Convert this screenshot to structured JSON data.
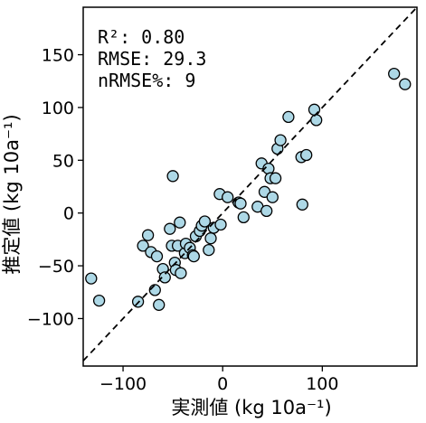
{
  "chart_data": {
    "type": "scatter",
    "xlabel": "実測値 (kg 10a⁻¹)",
    "ylabel": "推定値 (kg 10a⁻¹)",
    "xlim": [
      -140,
      195
    ],
    "ylim": [
      -145,
      195
    ],
    "xticks": [
      -100,
      0,
      100
    ],
    "yticks": [
      -100,
      -50,
      0,
      50,
      100,
      150
    ],
    "grid": false,
    "reference_line": "1:1 dashed",
    "stats": {
      "r2": "R²: 0.80",
      "rmse": "RMSE: 29.3",
      "nrmse": "nRMSE%: 9"
    },
    "marker_color": "#add8e6",
    "marker_edge": "#000000",
    "points": [
      {
        "x": -132,
        "y": -62
      },
      {
        "x": -124,
        "y": -83
      },
      {
        "x": -85,
        "y": -84
      },
      {
        "x": -80,
        "y": -31
      },
      {
        "x": -75,
        "y": -21
      },
      {
        "x": -72,
        "y": -37
      },
      {
        "x": -68,
        "y": -73
      },
      {
        "x": -66,
        "y": -41
      },
      {
        "x": -64,
        "y": -87
      },
      {
        "x": -60,
        "y": -53
      },
      {
        "x": -58,
        "y": -61
      },
      {
        "x": -53,
        "y": -15
      },
      {
        "x": -51,
        "y": -31
      },
      {
        "x": -50,
        "y": 35
      },
      {
        "x": -48,
        "y": -47
      },
      {
        "x": -47,
        "y": -54
      },
      {
        "x": -45,
        "y": -31
      },
      {
        "x": -43,
        "y": -9
      },
      {
        "x": -42,
        "y": -57
      },
      {
        "x": -38,
        "y": -38
      },
      {
        "x": -37,
        "y": -29
      },
      {
        "x": -33,
        "y": -33
      },
      {
        "x": -30,
        "y": -40
      },
      {
        "x": -29,
        "y": -41
      },
      {
        "x": -27,
        "y": -22
      },
      {
        "x": -23,
        "y": -17
      },
      {
        "x": -21,
        "y": -12
      },
      {
        "x": -18,
        "y": -8
      },
      {
        "x": -14,
        "y": -35
      },
      {
        "x": -12,
        "y": -24
      },
      {
        "x": -9,
        "y": -14
      },
      {
        "x": -3,
        "y": 18
      },
      {
        "x": -2,
        "y": -11
      },
      {
        "x": 5,
        "y": 15
      },
      {
        "x": 16,
        "y": 10
      },
      {
        "x": 18,
        "y": 9
      },
      {
        "x": 21,
        "y": -4
      },
      {
        "x": 35,
        "y": 6
      },
      {
        "x": 39,
        "y": 47
      },
      {
        "x": 42,
        "y": 20
      },
      {
        "x": 44,
        "y": 2
      },
      {
        "x": 46,
        "y": 42
      },
      {
        "x": 48,
        "y": 33
      },
      {
        "x": 50,
        "y": 15
      },
      {
        "x": 53,
        "y": 33
      },
      {
        "x": 55,
        "y": 61
      },
      {
        "x": 58,
        "y": 69
      },
      {
        "x": 66,
        "y": 91
      },
      {
        "x": 79,
        "y": 53
      },
      {
        "x": 80,
        "y": 8
      },
      {
        "x": 84,
        "y": 55
      },
      {
        "x": 92,
        "y": 98
      },
      {
        "x": 94,
        "y": 88
      },
      {
        "x": 172,
        "y": 132
      },
      {
        "x": 183,
        "y": 122
      }
    ]
  }
}
